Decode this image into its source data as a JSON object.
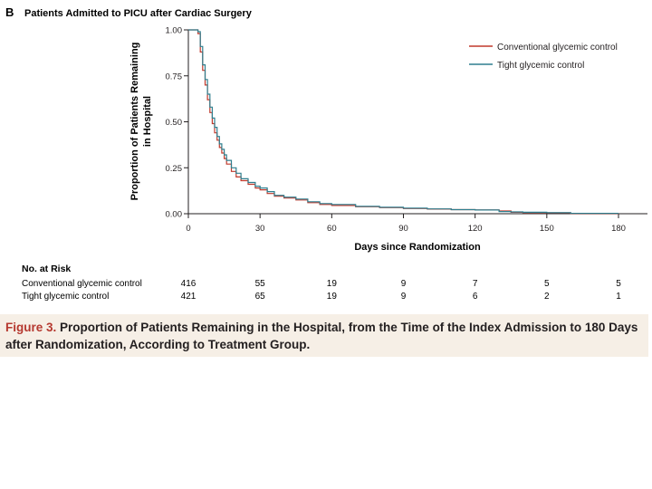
{
  "panel": {
    "letter": "B",
    "title": "Patients Admitted to PICU after Cardiac Surgery"
  },
  "caption": {
    "label": "Figure 3.",
    "text": "Proportion of Patients Remaining in the Hospital, from the Time of the Index Admission to 180 Days after Randomization, According to Treatment Group."
  },
  "risk_table": {
    "heading": "No. at Risk",
    "rows": [
      {
        "label": "Conventional glycemic control",
        "values": [
          "416",
          "55",
          "19",
          "9",
          "7",
          "5",
          "5"
        ]
      },
      {
        "label": "Tight glycemic control",
        "values": [
          "421",
          "65",
          "19",
          "9",
          "6",
          "2",
          "1"
        ]
      }
    ]
  },
  "colors": {
    "conventional": "#c0392b",
    "tight": "#2f7f8f",
    "axis": "#231f20",
    "caption_bg": "#f6efe6",
    "caption_label": "#b5382f"
  },
  "chart_data": {
    "type": "line",
    "step": true,
    "xlabel": "Days since Randomization",
    "ylabel_lines": [
      "Proportion of Patients Remaining",
      "in Hospital"
    ],
    "xlim": [
      0,
      180
    ],
    "ylim": [
      0,
      1
    ],
    "xticks": [
      0,
      30,
      60,
      90,
      120,
      150,
      180
    ],
    "yticks": [
      0,
      0.25,
      0.5,
      0.75,
      1.0
    ],
    "ytick_labels": [
      "0.00",
      "0.25",
      "0.50",
      "0.75",
      "1.00"
    ],
    "grid": false,
    "legend_position": "top-right",
    "series": [
      {
        "name": "Conventional glycemic control",
        "color": "#c0392b",
        "points": [
          [
            0,
            1.0
          ],
          [
            3,
            1.0
          ],
          [
            4,
            0.98
          ],
          [
            5,
            0.88
          ],
          [
            6,
            0.78
          ],
          [
            7,
            0.7
          ],
          [
            8,
            0.62
          ],
          [
            9,
            0.55
          ],
          [
            10,
            0.49
          ],
          [
            11,
            0.44
          ],
          [
            12,
            0.4
          ],
          [
            13,
            0.36
          ],
          [
            14,
            0.33
          ],
          [
            15,
            0.3
          ],
          [
            16,
            0.27
          ],
          [
            18,
            0.23
          ],
          [
            20,
            0.2
          ],
          [
            22,
            0.18
          ],
          [
            25,
            0.16
          ],
          [
            28,
            0.14
          ],
          [
            30,
            0.13
          ],
          [
            33,
            0.11
          ],
          [
            36,
            0.095
          ],
          [
            40,
            0.085
          ],
          [
            45,
            0.075
          ],
          [
            50,
            0.06
          ],
          [
            55,
            0.05
          ],
          [
            60,
            0.045
          ],
          [
            70,
            0.038
          ],
          [
            80,
            0.033
          ],
          [
            90,
            0.028
          ],
          [
            100,
            0.025
          ],
          [
            110,
            0.022
          ],
          [
            120,
            0.02
          ],
          [
            130,
            0.015
          ],
          [
            135,
            0.008
          ],
          [
            140,
            0.006
          ],
          [
            150,
            0.005
          ],
          [
            160,
            0.0
          ],
          [
            180,
            0.0
          ]
        ]
      },
      {
        "name": "Tight glycemic control",
        "color": "#2f7f8f",
        "points": [
          [
            0,
            1.0
          ],
          [
            3,
            1.0
          ],
          [
            4,
            0.99
          ],
          [
            5,
            0.91
          ],
          [
            6,
            0.81
          ],
          [
            7,
            0.73
          ],
          [
            8,
            0.65
          ],
          [
            9,
            0.58
          ],
          [
            10,
            0.52
          ],
          [
            11,
            0.47
          ],
          [
            12,
            0.42
          ],
          [
            13,
            0.38
          ],
          [
            14,
            0.35
          ],
          [
            15,
            0.32
          ],
          [
            16,
            0.29
          ],
          [
            18,
            0.25
          ],
          [
            20,
            0.22
          ],
          [
            22,
            0.19
          ],
          [
            25,
            0.17
          ],
          [
            28,
            0.15
          ],
          [
            30,
            0.14
          ],
          [
            33,
            0.12
          ],
          [
            36,
            0.1
          ],
          [
            40,
            0.09
          ],
          [
            45,
            0.08
          ],
          [
            50,
            0.065
          ],
          [
            55,
            0.055
          ],
          [
            60,
            0.05
          ],
          [
            70,
            0.04
          ],
          [
            80,
            0.035
          ],
          [
            90,
            0.03
          ],
          [
            100,
            0.026
          ],
          [
            110,
            0.022
          ],
          [
            120,
            0.02
          ],
          [
            130,
            0.012
          ],
          [
            135,
            0.01
          ],
          [
            140,
            0.008
          ],
          [
            150,
            0.006
          ],
          [
            160,
            0.002
          ],
          [
            180,
            0.002
          ]
        ]
      }
    ]
  }
}
